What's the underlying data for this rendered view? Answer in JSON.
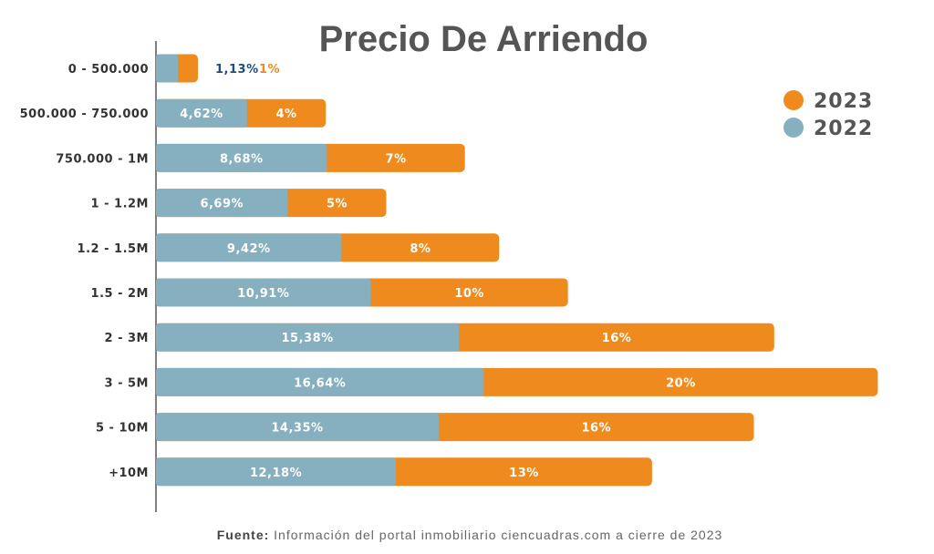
{
  "chart_data": {
    "type": "bar",
    "orientation": "horizontal",
    "stacked": true,
    "title": "Precio De Arriendo",
    "categories": [
      "0 - 500.000",
      "500.000 - 750.000",
      "750.000 - 1M",
      "1 - 1.2M",
      "1.2 - 1.5M",
      "1.5 - 2M",
      "2 - 3M",
      "3 - 5M",
      "5 - 10M",
      "+10M"
    ],
    "series": [
      {
        "name": "2022",
        "color": "#86afbf",
        "values": [
          1.13,
          4.62,
          8.68,
          6.69,
          9.42,
          10.91,
          15.38,
          16.64,
          14.35,
          12.18
        ],
        "labels": [
          "1,13%",
          "4,62%",
          "8,68%",
          "6,69%",
          "9,42%",
          "10,91%",
          "15,38%",
          "16,64%",
          "14,35%",
          "12,18%"
        ]
      },
      {
        "name": "2023",
        "color": "#ee8a1e",
        "values": [
          1,
          4,
          7,
          5,
          8,
          10,
          16,
          20,
          16,
          13
        ],
        "labels": [
          "1%",
          "4%",
          "7%",
          "5%",
          "8%",
          "10%",
          "16%",
          "20%",
          "16%",
          "13%"
        ]
      }
    ],
    "legend": {
      "placement": "top-right",
      "entries": [
        "2023",
        "2022"
      ]
    },
    "small_value_label_color": "#1f4e79",
    "xlabel": "",
    "ylabel": "",
    "xlim": [
      0,
      37
    ],
    "grid": false
  },
  "footer": {
    "bold": "Fuente:",
    "text": " Información del portal inmobiliario ciencuadras.com a cierre de 2023"
  }
}
